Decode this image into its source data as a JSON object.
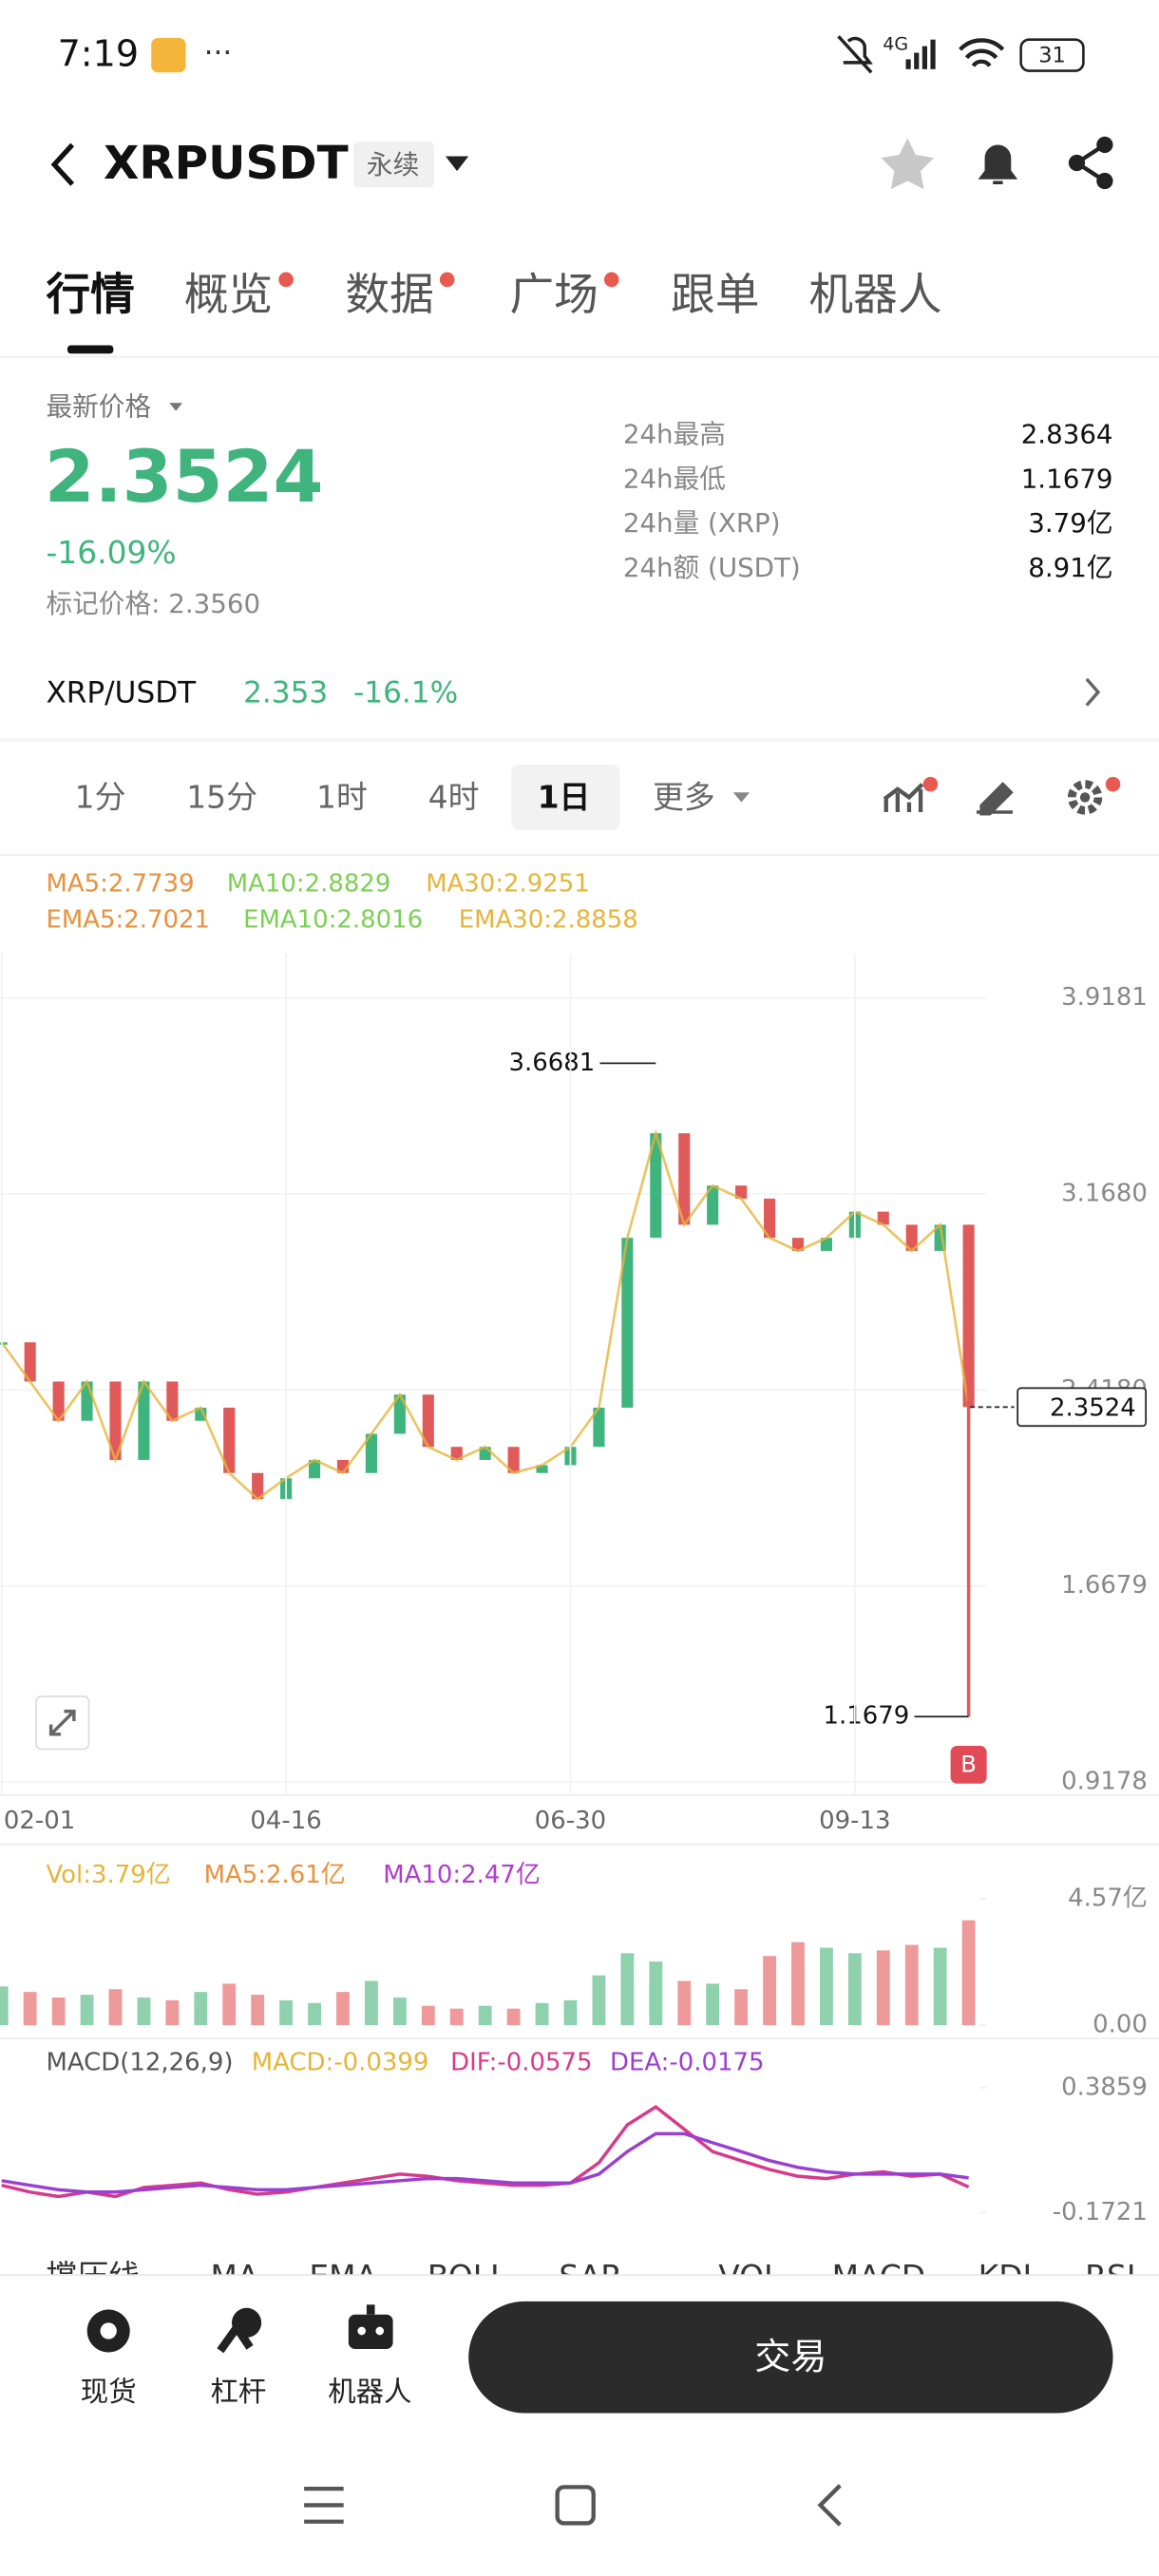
{
  "status_bar": {
    "time": "7:19",
    "network": "4G",
    "battery": "31"
  },
  "header": {
    "symbol": "XRPUSDT",
    "contract_type": "永续"
  },
  "tabs": [
    "行情",
    "概览",
    "数据",
    "广场",
    "跟单",
    "机器人"
  ],
  "price_panel": {
    "label": "最新价格",
    "last_price": "2.3524",
    "change": "-16.09%",
    "mark_price": "标记价格: 2.3560",
    "stats": [
      {
        "label": "24h最高",
        "value": "2.8364"
      },
      {
        "label": "24h最低",
        "value": "1.1679"
      },
      {
        "label": "24h量 (XRP)",
        "value": "3.79亿"
      },
      {
        "label": "24h额 (USDT)",
        "value": "8.91亿"
      }
    ]
  },
  "spot_pair": {
    "name": "XRP/USDT",
    "price": "2.353",
    "change": "-16.1%"
  },
  "intervals": [
    "1分",
    "15分",
    "1时",
    "4时",
    "1日",
    "更多"
  ],
  "chart_data": [
    {
      "type": "line",
      "legend": [
        {
          "label": "MA5:2.7739",
          "color": "#e8913e"
        },
        {
          "label": "MA10:2.8829",
          "color": "#7ccf55"
        },
        {
          "label": "MA30:2.9251",
          "color": "#e6b43a"
        },
        {
          "label": "EMA5:2.7021",
          "color": "#e8913e"
        },
        {
          "label": "EMA10:2.8016",
          "color": "#7ccf55"
        },
        {
          "label": "EMA30:2.8858",
          "color": "#e6b43a"
        }
      ],
      "categories": [
        "02-01",
        null,
        null,
        null,
        null,
        null,
        null,
        null,
        null,
        null,
        "04-16",
        null,
        null,
        null,
        null,
        null,
        null,
        null,
        null,
        null,
        "06-30",
        null,
        null,
        null,
        null,
        null,
        null,
        null,
        null,
        null,
        "09-13",
        null,
        null,
        null,
        null
      ],
      "values": [
        2.6,
        2.45,
        2.3,
        2.45,
        2.15,
        2.45,
        2.3,
        2.35,
        2.1,
        2.0,
        2.08,
        2.15,
        2.1,
        2.25,
        2.4,
        2.2,
        2.15,
        2.2,
        2.1,
        2.13,
        2.2,
        2.35,
        3.0,
        3.4,
        3.05,
        3.2,
        3.15,
        3.0,
        2.95,
        3.0,
        3.1,
        3.05,
        2.95,
        3.05,
        2.3524
      ],
      "color": "#3fb57d",
      "down_color": "#e05a5a",
      "ylim": [
        0.9178,
        3.9181
      ],
      "yticks": [
        3.9181,
        {
          "value": 3.168,
          "label": "3.1680"
        },
        {
          "value": 2.418,
          "label": "2.4180"
        },
        1.6679,
        0.9178
      ],
      "annotations": {
        "high": 3.6681,
        "low": 1.1679,
        "last_price": 2.3524,
        "marker": "B"
      },
      "grid": true
    },
    {
      "type": "bar",
      "legend": [
        {
          "label": "Vol:3.79亿",
          "color": "#e6b43a"
        },
        {
          "label": "MA5:2.61亿",
          "color": "#e8913e"
        },
        {
          "label": "MA10:2.47亿",
          "color": "#b03ccf"
        }
      ],
      "values": [
        1.4,
        1.2,
        1.0,
        1.1,
        1.3,
        1.0,
        0.9,
        1.2,
        1.5,
        1.1,
        0.9,
        0.8,
        1.2,
        1.6,
        1.0,
        0.7,
        0.6,
        0.7,
        0.6,
        0.8,
        0.9,
        1.8,
        2.6,
        2.3,
        1.6,
        1.5,
        1.3,
        2.5,
        3.0,
        2.8,
        2.6,
        2.7,
        2.9,
        2.8,
        3.79
      ],
      "ylim": [
        0,
        4.57
      ],
      "yticks": [
        {
          "value": 4.57,
          "label": "4.57亿"
        },
        {
          "value": 0,
          "label": "0.00"
        }
      ]
    },
    {
      "type": "line",
      "legend": [
        {
          "label": "MACD(12,26,9)",
          "color": "#555555"
        },
        {
          "label": "MACD:-0.0399",
          "color": "#e6b43a"
        },
        {
          "label": "DIF:-0.0575",
          "color": "#d63a8a"
        },
        {
          "label": "DEA:-0.0175",
          "color": "#9b3fd0"
        }
      ],
      "series": [
        {
          "color": "#d63a8a",
          "values": [
            -0.05,
            -0.08,
            -0.1,
            -0.08,
            -0.1,
            -0.06,
            -0.05,
            -0.04,
            -0.07,
            -0.09,
            -0.08,
            -0.06,
            -0.04,
            -0.02,
            0.0,
            -0.01,
            -0.03,
            -0.04,
            -0.05,
            -0.05,
            -0.04,
            0.05,
            0.22,
            0.3,
            0.2,
            0.1,
            0.06,
            0.02,
            -0.01,
            -0.02,
            0.0,
            0.01,
            -0.01,
            0.0,
            -0.0575
          ]
        },
        {
          "color": "#9b3fd0",
          "values": [
            -0.03,
            -0.05,
            -0.07,
            -0.08,
            -0.08,
            -0.07,
            -0.06,
            -0.05,
            -0.06,
            -0.07,
            -0.07,
            -0.06,
            -0.05,
            -0.04,
            -0.03,
            -0.02,
            -0.02,
            -0.03,
            -0.04,
            -0.04,
            -0.04,
            0.0,
            0.1,
            0.18,
            0.18,
            0.14,
            0.1,
            0.06,
            0.03,
            0.01,
            0.0,
            0.0,
            0.0,
            0.0,
            -0.0175
          ]
        }
      ],
      "ylim": [
        -0.1721,
        0.3859
      ],
      "yticks": [
        0.3859,
        -0.1721
      ]
    }
  ],
  "indicator_tabs": [
    "撑压线",
    "MA",
    "EMA",
    "BOLL",
    "SAR",
    "VOL",
    "MACD",
    "KDJ",
    "RSI"
  ],
  "bottom_bar": {
    "items": [
      "现货",
      "杠杆",
      "机器人"
    ],
    "trade_button": "交易"
  }
}
